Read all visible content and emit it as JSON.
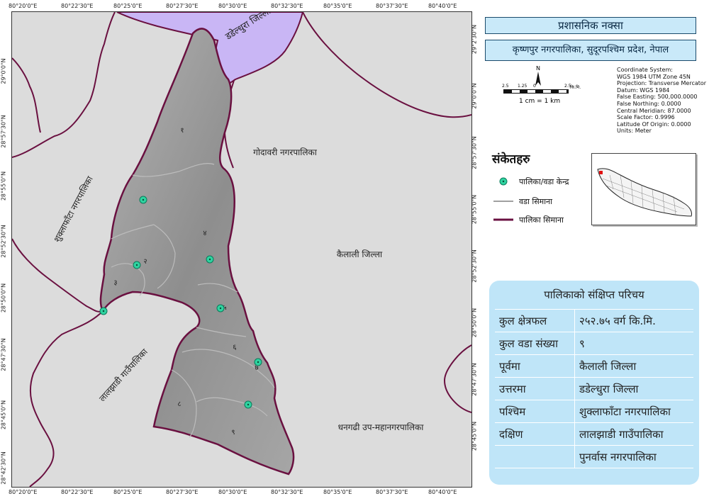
{
  "title": "प्रशासनिक नक्सा",
  "subtitle": "कृष्णपुर नगरपालिका, सुदूरपश्चिम प्रदेश, नेपाल",
  "coordinate_system": [
    "Coordinate System:",
    "WGS 1984 UTM Zone 45N",
    "Projection: Transverse Mercator",
    "Datum: WGS 1984",
    "False Easting: 500,000.0000",
    "False Northing: 0.0000",
    "Central Meridian: 87.0000",
    "Scale Factor: 0.9996",
    "Latitude Of Origin: 0.0000",
    "Units: Meter"
  ],
  "scale": {
    "ticks": [
      "2.5",
      "1.25",
      "0",
      "2.5"
    ],
    "unit": "कि.मि.",
    "ratio": "1 cm = 1 km"
  },
  "north_arrow": "N",
  "legend": {
    "title": "संकेतहरु",
    "items": [
      {
        "label": "पालिका/वडा केन्द्र",
        "icon": "ward-center-icon",
        "color": "#2fd3a0"
      },
      {
        "label": "वडा सिमाना",
        "icon": "ward-boundary-line",
        "color": "#a0a0a0"
      },
      {
        "label": "पालिका सिमाना",
        "icon": "municipality-boundary-line",
        "color": "#6a1040"
      }
    ]
  },
  "map": {
    "top_ticks": [
      "80°20'0\"E",
      "80°22'30\"E",
      "80°25'0\"E",
      "80°27'30\"E",
      "80°30'0\"E",
      "80°32'30\"E",
      "80°35'0\"E",
      "80°37'30\"E",
      "80°40'0\"E"
    ],
    "bottom_ticks": [
      "80°20'0\"E",
      "80°22'30\"E",
      "80°25'0\"E",
      "80°27'30\"E",
      "80°30'0\"E",
      "80°32'30\"E",
      "80°35'0\"E",
      "80°37'30\"E",
      "80°40'0\"E"
    ],
    "left_ticks": [
      "29°0'0\"N",
      "28°57'30\"N",
      "28°55'0\"N",
      "28°52'30\"N",
      "28°50'0\"N",
      "28°47'30\"N",
      "28°45'0\"N",
      "28°42'30\"N"
    ],
    "right_ticks": [
      "29°2'30\"N",
      "29°0'0\"N",
      "28°57'30\"N",
      "28°55'0\"N",
      "28°52'30\"N",
      "28°50'0\"N",
      "28°47'30\"N",
      "28°45'0\"N"
    ],
    "neighbors": {
      "north": "डडेल्धुरा जिल्ला",
      "east_top": "गोदावरी नगरपालिका",
      "east": "कैलाली जिल्ला",
      "southeast": "धनगढी उप-महानगरपालिका",
      "west": "शुक्लाफाँटा नगरपालिका",
      "southwest": "लालझाडी गाउँपालिका"
    },
    "wards": [
      "१",
      "२",
      "३",
      "४",
      "५",
      "६",
      "७",
      "८",
      "९"
    ],
    "colors": {
      "background": "#dcdcdc",
      "district_north": "#c9b6f5",
      "municipality": "#9c9c9c",
      "boundary": "#6a1040",
      "ward_center": "#2fd3a0"
    }
  },
  "profile": {
    "title": "पालिकाको संक्षिप्त परिचय",
    "rows": [
      {
        "key": "कुल क्षेत्रफल",
        "value": "२५२.७५ वर्ग कि.मि."
      },
      {
        "key": "कुल वडा संख्या",
        "value": "९"
      },
      {
        "key": "पूर्वमा",
        "value": "कैलाली जिल्ला"
      },
      {
        "key": "उत्तरमा",
        "value": "डडेल्धुरा जिल्ला"
      },
      {
        "key": "पश्चिम",
        "value": "शुक्लाफाँटा नगरपालिका"
      },
      {
        "key": "दक्षिण",
        "value": "लालझाडी गाउँपालिका"
      },
      {
        "key": "",
        "value": "पुनर्वास नगरपालिका"
      }
    ]
  }
}
